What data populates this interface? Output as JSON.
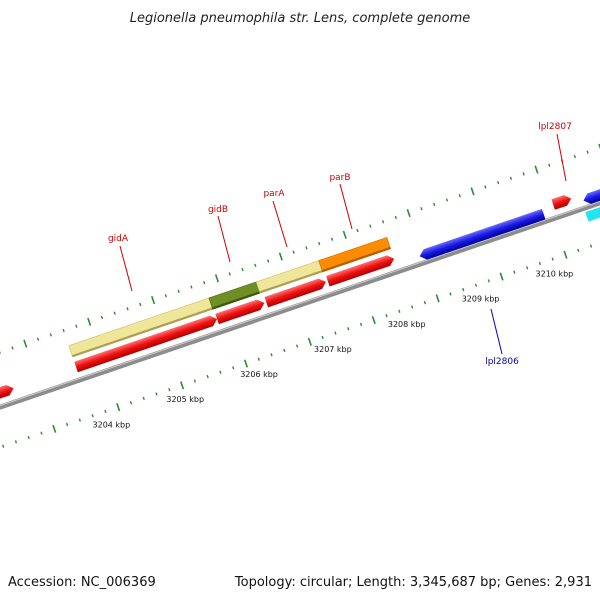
{
  "title": "Legionella pneumophila str. Lens, complete genome",
  "footer": {
    "accession": "Accession: NC_006369",
    "summary": "Topology: circular; Length: 3,345,687 bp; Genes: 2,931"
  },
  "colors": {
    "backbone": "#8c8c8c",
    "tick": "#2e8b2e",
    "forward_cds": "#ee1111",
    "reverse_cds": "#1a1ae0",
    "gidA": "#f0e69a",
    "gidB": "#6e8f24",
    "parA": "#f0e69a",
    "parB": "#ff8c00",
    "cyan": "#22e5f0",
    "label_red": "#cc0000",
    "label_blue": "#0000bb"
  },
  "scale_labels": [
    "3204 kbp",
    "3205 kbp",
    "3206 kbp",
    "3207 kbp",
    "3208 kbp",
    "3209 kbp",
    "3210 kbp"
  ],
  "gene_labels": [
    {
      "name": "gidA",
      "strand": "forward"
    },
    {
      "name": "gidB",
      "strand": "forward"
    },
    {
      "name": "parA",
      "strand": "forward"
    },
    {
      "name": "parB",
      "strand": "forward"
    },
    {
      "name": "lpl2807",
      "strand": "forward"
    },
    {
      "name": "lpl2806",
      "strand": "reverse"
    }
  ]
}
